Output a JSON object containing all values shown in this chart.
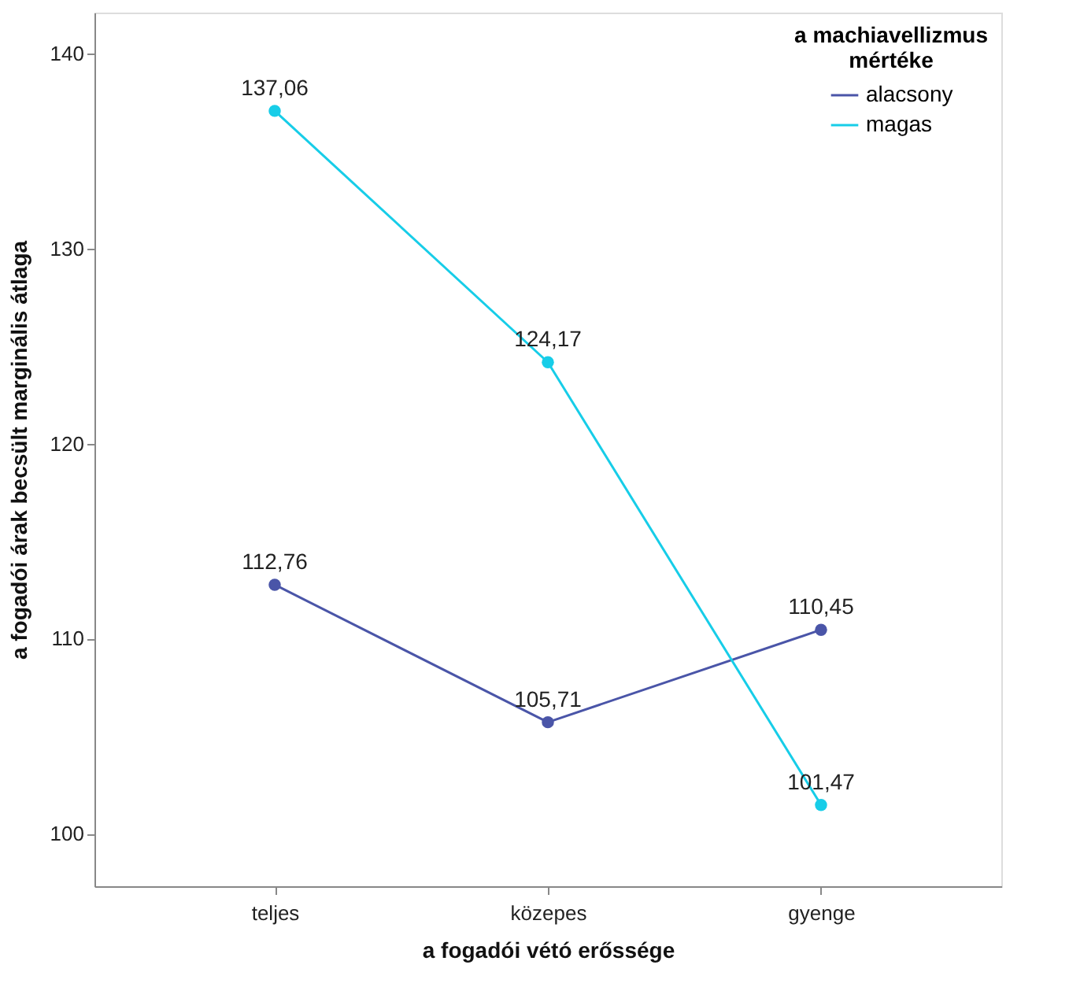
{
  "chart_data": {
    "type": "line",
    "xlabel": "a fogadói vétó erőssége",
    "ylabel": "a fogadói árak becsült marginális átlaga",
    "legend_title": "a machiavellizmus\nmértéke",
    "categories": [
      "teljes",
      "közepes",
      "gyenge"
    ],
    "series": [
      {
        "name": "alacsony",
        "color": "#4a55a8",
        "values": [
          112.76,
          105.71,
          110.45
        ],
        "value_labels": [
          "112,76",
          "105,71",
          "110,45"
        ]
      },
      {
        "name": "magas",
        "color": "#17cde8",
        "values": [
          137.06,
          124.17,
          101.47
        ],
        "value_labels": [
          "137,06",
          "124,17",
          "101,47"
        ]
      }
    ],
    "ylim": [
      97.3,
      142.1
    ],
    "yticks": [
      100,
      110,
      120,
      130,
      140
    ],
    "grid": false,
    "legend": "top right",
    "marker": "circle",
    "line_style": "solid"
  }
}
